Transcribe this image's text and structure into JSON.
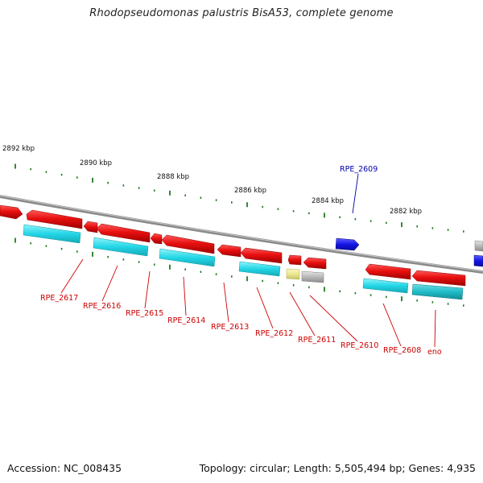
{
  "title": "Rhodopseudomonas palustris BisA53, complete genome",
  "footer": {
    "accession": "Accession: NC_008435",
    "summary": "Topology: circular; Length: 5,505,494 bp; Genes: 4,935"
  },
  "colors": {
    "backbone": "#888888",
    "tick": "#1f7a1f",
    "gene_red": "#e01010",
    "gene_cyan": "#22d6e6",
    "gene_grey": "#b4b4b4",
    "gene_yellow": "#ece890",
    "gene_blue": "#1515e6",
    "gene_teal": "#20bcc8",
    "label_red": "#cc0000",
    "label_blue": "#0000aa"
  },
  "kbp_labels": [
    "2892 kbp",
    "2890 kbp",
    "2888 kbp",
    "2886 kbp",
    "2884 kbp",
    "2882 kbp"
  ],
  "gene_labels": [
    {
      "name": "RPE_2617",
      "color": "red"
    },
    {
      "name": "RPE_2616",
      "color": "red"
    },
    {
      "name": "RPE_2615",
      "color": "red"
    },
    {
      "name": "RPE_2614",
      "color": "red"
    },
    {
      "name": "RPE_2613",
      "color": "red"
    },
    {
      "name": "RPE_2612",
      "color": "red"
    },
    {
      "name": "RPE_2611",
      "color": "red"
    },
    {
      "name": "RPE_2610",
      "color": "red"
    },
    {
      "name": "RPE_2608",
      "color": "red"
    },
    {
      "name": "eno",
      "color": "red"
    },
    {
      "name": "RPE_2609",
      "color": "blue"
    }
  ]
}
